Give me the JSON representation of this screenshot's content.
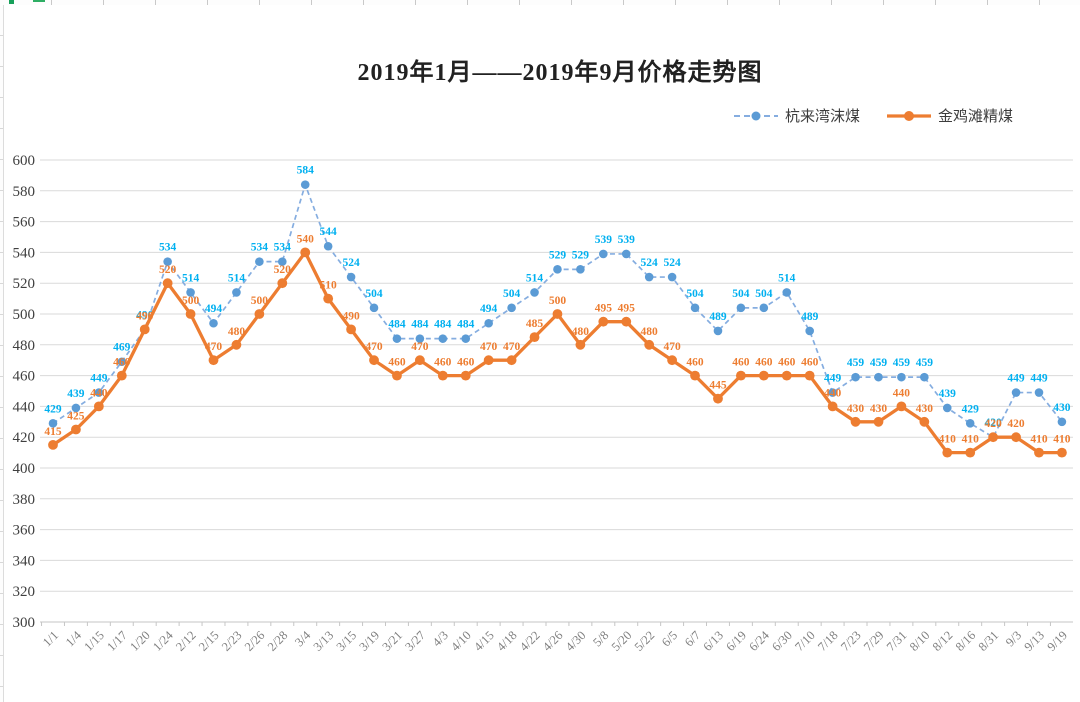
{
  "chart": {
    "title": "2019年1月——2019年9月价格走势图"
  },
  "chart_data": {
    "type": "line",
    "title": "2019年1月——2019年9月价格走势图",
    "grid": true,
    "legend_position": "top-right",
    "ylim": [
      300,
      600
    ],
    "ytick_step": 20,
    "categories": [
      "1/1",
      "1/4",
      "1/15",
      "1/17",
      "1/20",
      "1/24",
      "2/12",
      "2/15",
      "2/23",
      "2/26",
      "2/28",
      "3/4",
      "3/13",
      "3/15",
      "3/19",
      "3/21",
      "3/27",
      "4/3",
      "4/10",
      "4/15",
      "4/18",
      "4/22",
      "4/26",
      "4/30",
      "5/8",
      "5/20",
      "5/22",
      "6/5",
      "6/7",
      "6/13",
      "6/19",
      "6/24",
      "6/30",
      "7/10",
      "7/18",
      "7/23",
      "7/29",
      "7/31",
      "8/10",
      "8/12",
      "8/16",
      "8/31",
      "9/3",
      "9/13",
      "9/19"
    ],
    "series": [
      {
        "name": "杭来湾沫煤",
        "style": "dashed",
        "line_color": "#85ade0",
        "marker_color": "#5b9bd5",
        "label_color": "#00b0f0",
        "values": [
          429,
          439,
          449,
          469,
          490,
          534,
          514,
          494,
          514,
          534,
          534,
          584,
          544,
          524,
          504,
          484,
          484,
          484,
          484,
          494,
          504,
          514,
          529,
          529,
          539,
          539,
          524,
          524,
          504,
          489,
          504,
          504,
          514,
          489,
          449,
          459,
          459,
          459,
          459,
          439,
          429,
          420,
          449,
          449,
          430
        ]
      },
      {
        "name": "金鸡滩精煤",
        "style": "solid",
        "line_color": "#ed7d31",
        "marker_color": "#ed7d31",
        "label_color": "#ed7d31",
        "values": [
          415,
          425,
          440,
          460,
          490,
          520,
          500,
          470,
          480,
          500,
          520,
          540,
          510,
          490,
          470,
          460,
          470,
          460,
          460,
          470,
          470,
          485,
          500,
          480,
          495,
          495,
          480,
          470,
          460,
          445,
          460,
          460,
          460,
          460,
          440,
          430,
          430,
          440,
          430,
          410,
          410,
          420,
          420,
          410,
          410
        ]
      }
    ]
  },
  "axes": {
    "y_ticks": [
      "600",
      "580",
      "560",
      "540",
      "520",
      "500",
      "480",
      "460",
      "440",
      "420",
      "400",
      "380",
      "360",
      "340",
      "320",
      "300"
    ]
  },
  "colors": {
    "gridline": "#dadada",
    "axis_line": "#c6c6c6",
    "y_label": "#3f3f3f",
    "x_label": "#7f7f7f"
  }
}
